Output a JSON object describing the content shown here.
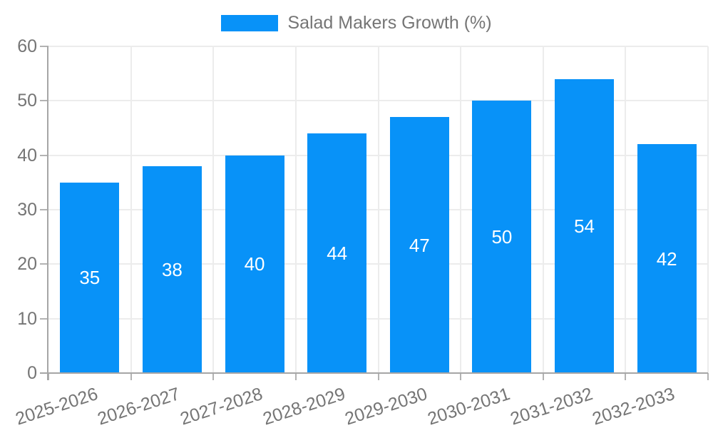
{
  "chart_data": {
    "type": "bar",
    "title": "",
    "legend": "Salad Makers Growth (%)",
    "categories": [
      "2025-2026",
      "2026-2027",
      "2027-2028",
      "2028-2029",
      "2029-2030",
      "2030-2031",
      "2031-2032",
      "2032-2033"
    ],
    "series": [
      {
        "name": "Salad Makers Growth (%)",
        "values": [
          35,
          38,
          40,
          44,
          47,
          50,
          54,
          42
        ]
      }
    ],
    "values": [
      35,
      38,
      40,
      44,
      47,
      50,
      54,
      42
    ],
    "xlabel": "",
    "ylabel": "",
    "ylim": [
      0,
      60
    ],
    "yticks": [
      0,
      10,
      20,
      30,
      40,
      50,
      60
    ],
    "grid": true,
    "legend_position": "top-center",
    "bar_label_position": "inside-center",
    "colors": {
      "bar": "#0892f8",
      "bar_label": "#ffffff",
      "axis": "#a6a6a6",
      "tick": "#b3b3b3",
      "gridline": "#ececec",
      "text": "#757575"
    }
  }
}
